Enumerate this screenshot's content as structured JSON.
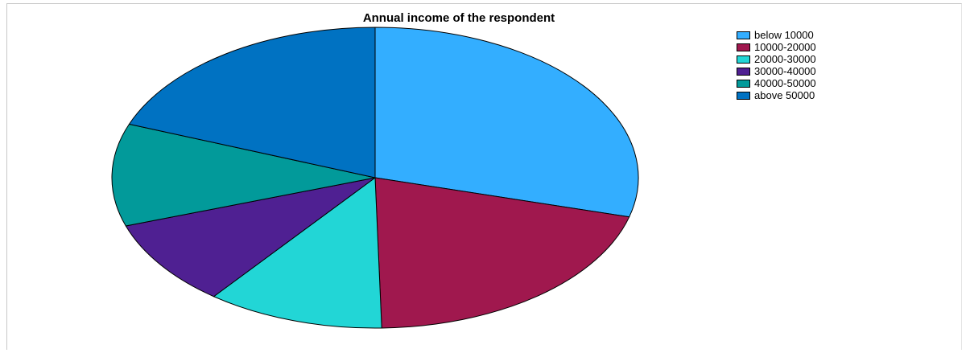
{
  "chart_data": {
    "type": "pie",
    "title": "Annual income of the respondent",
    "categories": [
      "below 10000",
      "10000-20000",
      "20000-30000",
      "30000-40000",
      "40000-50000",
      "above 50000"
    ],
    "values": [
      29.2,
      20.4,
      10.9,
      9.3,
      11.0,
      19.2
    ],
    "colors": [
      "#33aeff",
      "#a0184e",
      "#22d6d6",
      "#4f2092",
      "#029a9a",
      "#0072c2"
    ],
    "start_angle_deg": 0,
    "direction": "clockwise",
    "legend_position": "top-right",
    "grid": false
  }
}
